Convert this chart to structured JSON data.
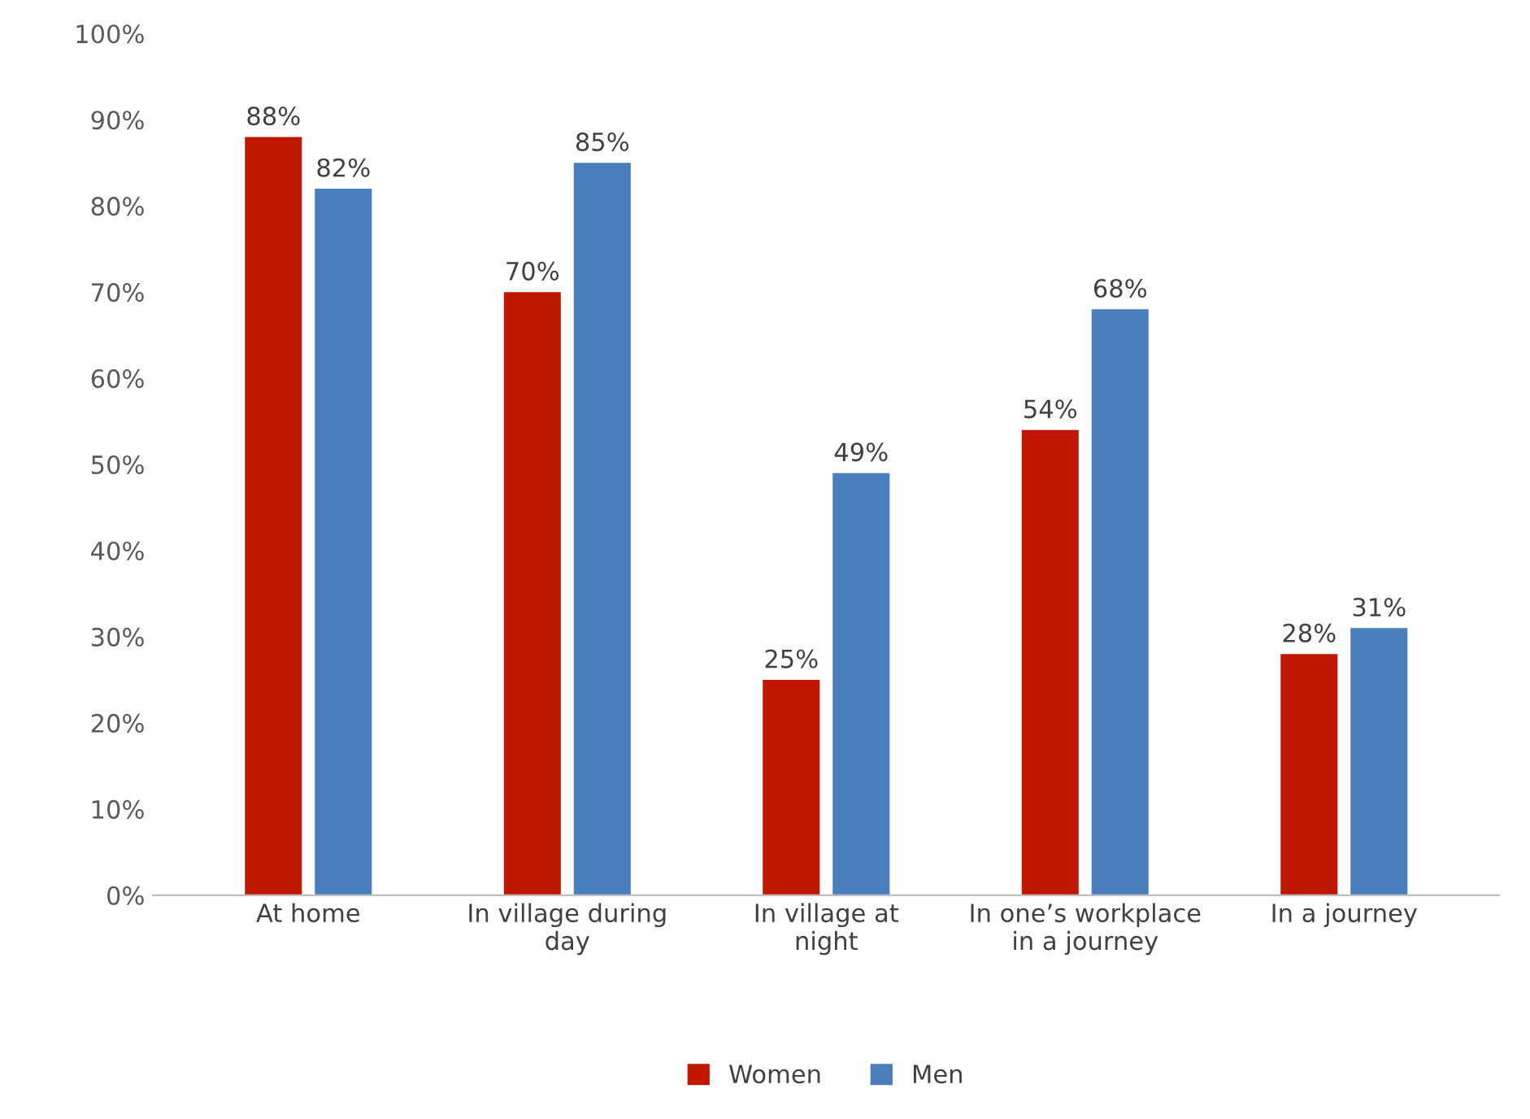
{
  "chart_data": {
    "type": "bar",
    "categories": [
      "At home",
      "In village during day",
      "In village at night",
      "In one’s workplace in a journey",
      "In a journey"
    ],
    "series": [
      {
        "name": "Women",
        "color": "#c01800",
        "values": [
          88,
          70,
          25,
          54,
          28
        ],
        "value_labels": [
          "88%",
          "70%",
          "25%",
          "54%",
          "28%"
        ]
      },
      {
        "name": "Men",
        "color": "#4a7ebf",
        "values": [
          82,
          85,
          49,
          68,
          31
        ],
        "value_labels": [
          "82%",
          "85%",
          "49%",
          "68%",
          "31%"
        ]
      }
    ],
    "ylim": [
      0,
      100
    ],
    "yticks": [
      {
        "value": 0,
        "label": "0%"
      },
      {
        "value": 10,
        "label": "10%"
      },
      {
        "value": 20,
        "label": "20%"
      },
      {
        "value": 30,
        "label": "30%"
      },
      {
        "value": 40,
        "label": "40%"
      },
      {
        "value": 50,
        "label": "50%"
      },
      {
        "value": 60,
        "label": "60%"
      },
      {
        "value": 70,
        "label": "70%"
      },
      {
        "value": 80,
        "label": "80%"
      },
      {
        "value": 90,
        "label": "90%"
      },
      {
        "value": 100,
        "label": "100%"
      }
    ],
    "grid": false,
    "legend": "bottom"
  }
}
